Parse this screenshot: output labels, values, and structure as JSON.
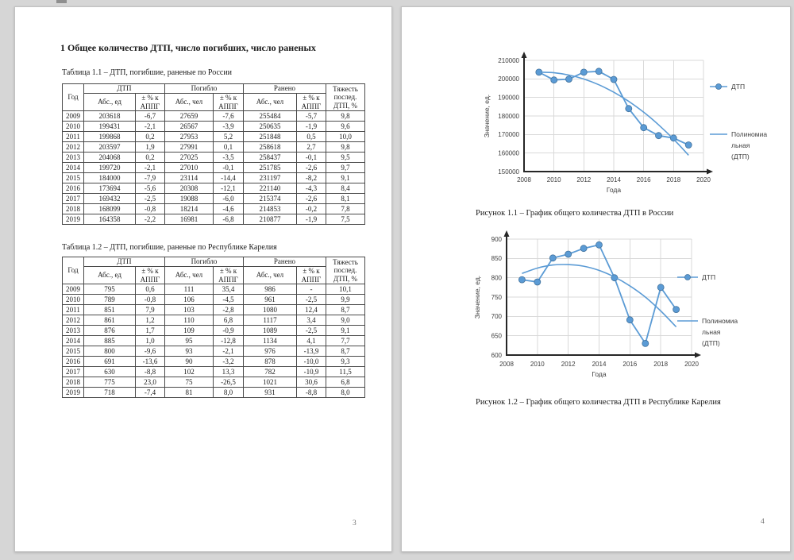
{
  "document": {
    "left_page": {
      "page_number": "3",
      "heading": "1 Общее количество ДТП, число погибших, число раненых",
      "table_header": {
        "year": "Год",
        "dtp": "ДТП",
        "killed": "Погибло",
        "injured": "Ранено",
        "abs_units": "Абс., ед",
        "abs_people": "Абс., чел",
        "pct_appg": "± % к АППГ",
        "severity": "Тяжесть послед. ДТП, %"
      },
      "tables": [
        {
          "caption": "Таблица 1.1 – ДТП, погибшие, раненые по России",
          "rows": [
            [
              "2009",
              "203618",
              "-6,7",
              "27659",
              "-7,6",
              "255484",
              "-5,7",
              "9,8"
            ],
            [
              "2010",
              "199431",
              "-2,1",
              "26567",
              "-3,9",
              "250635",
              "-1,9",
              "9,6"
            ],
            [
              "2011",
              "199868",
              "0,2",
              "27953",
              "5,2",
              "251848",
              "0,5",
              "10,0"
            ],
            [
              "2012",
              "203597",
              "1,9",
              "27991",
              "0,1",
              "258618",
              "2,7",
              "9,8"
            ],
            [
              "2013",
              "204068",
              "0,2",
              "27025",
              "-3,5",
              "258437",
              "-0,1",
              "9,5"
            ],
            [
              "2014",
              "199720",
              "-2,1",
              "27010",
              "-0,1",
              "251785",
              "-2,6",
              "9,7"
            ],
            [
              "2015",
              "184000",
              "-7,9",
              "23114",
              "-14,4",
              "231197",
              "-8,2",
              "9,1"
            ],
            [
              "2016",
              "173694",
              "-5,6",
              "20308",
              "-12,1",
              "221140",
              "-4,3",
              "8,4"
            ],
            [
              "2017",
              "169432",
              "-2,5",
              "19088",
              "-6,0",
              "215374",
              "-2,6",
              "8,1"
            ],
            [
              "2018",
              "168099",
              "-0,8",
              "18214",
              "-4,6",
              "214853",
              "-0,2",
              "7,8"
            ],
            [
              "2019",
              "164358",
              "-2,2",
              "16981",
              "-6,8",
              "210877",
              "-1,9",
              "7,5"
            ]
          ]
        },
        {
          "caption": "Таблица 1.2 – ДТП, погибшие, раненые по Республике Карелия",
          "rows": [
            [
              "2009",
              "795",
              "0,6",
              "111",
              "35,4",
              "986",
              "-",
              "10,1"
            ],
            [
              "2010",
              "789",
              "-0,8",
              "106",
              "-4,5",
              "961",
              "-2,5",
              "9,9"
            ],
            [
              "2011",
              "851",
              "7,9",
              "103",
              "-2,8",
              "1080",
              "12,4",
              "8,7"
            ],
            [
              "2012",
              "861",
              "1,2",
              "110",
              "6,8",
              "1117",
              "3,4",
              "9,0"
            ],
            [
              "2013",
              "876",
              "1,7",
              "109",
              "-0,9",
              "1089",
              "-2,5",
              "9,1"
            ],
            [
              "2014",
              "885",
              "1,0",
              "95",
              "-12,8",
              "1134",
              "4,1",
              "7,7"
            ],
            [
              "2015",
              "800",
              "-9,6",
              "93",
              "-2,1",
              "976",
              "-13,9",
              "8,7"
            ],
            [
              "2016",
              "691",
              "-13,6",
              "90",
              "-3,2",
              "878",
              "-10,0",
              "9,3"
            ],
            [
              "2017",
              "630",
              "-8,8",
              "102",
              "13,3",
              "782",
              "-10,9",
              "11,5"
            ],
            [
              "2018",
              "775",
              "23,0",
              "75",
              "-26,5",
              "1021",
              "30,6",
              "6,8"
            ],
            [
              "2019",
              "718",
              "-7,4",
              "81",
              "8,0",
              "931",
              "-8,8",
              "8,0"
            ]
          ]
        }
      ]
    },
    "right_page": {
      "page_number": "4",
      "figure_captions": [
        "Рисунок 1.1 – График общего количества ДТП в России",
        "Рисунок 1.2 – График общего количества ДТП в Республике Карелия"
      ]
    }
  },
  "chart_data": [
    {
      "type": "line",
      "title": "",
      "region": "Россия",
      "x": [
        2009,
        2010,
        2011,
        2012,
        2013,
        2014,
        2015,
        2016,
        2017,
        2018,
        2019
      ],
      "series": [
        {
          "name": "ДТП",
          "legend_lines": [
            "ДТП"
          ],
          "marker": true,
          "smooth": false,
          "values": [
            203618,
            199431,
            199868,
            203597,
            204068,
            199720,
            184000,
            173694,
            169432,
            168099,
            164358
          ]
        },
        {
          "name": "Полиномиальная (ДТП)",
          "legend_lines": [
            "Полиномиа",
            "льная",
            "(ДТП)"
          ],
          "marker": false,
          "smooth": true,
          "values": [
            203613,
            203308,
            202075,
            199914,
            196826,
            192810,
            187866,
            181994,
            175195,
            167468,
            158813
          ]
        }
      ],
      "xlabel": "Года",
      "ylabel": "Значение, ед.",
      "xlim": [
        2008,
        2020
      ],
      "ylim": [
        150000,
        210000
      ],
      "xticks": [
        2008,
        2010,
        2012,
        2014,
        2016,
        2018,
        2020
      ],
      "yticks": [
        150000,
        160000,
        170000,
        180000,
        190000,
        200000,
        210000
      ],
      "grid": true,
      "legend_position": "right",
      "line_color": "#5B9BD5",
      "marker_edge_color": "#41719C",
      "grid_color": "#D9D9D9",
      "axis_color": "#262626"
    },
    {
      "type": "line",
      "title": "",
      "region": "Республика Карелия",
      "x": [
        2009,
        2010,
        2011,
        2012,
        2013,
        2014,
        2015,
        2016,
        2017,
        2018,
        2019
      ],
      "series": [
        {
          "name": "ДТП",
          "legend_lines": [
            "ДТП"
          ],
          "marker": true,
          "smooth": false,
          "values": [
            795,
            789,
            851,
            861,
            876,
            885,
            800,
            691,
            630,
            775,
            718
          ]
        },
        {
          "name": "Полиномиальная (ДТП)",
          "legend_lines": [
            "Полиномиа",
            "льная",
            "(ДТП)"
          ],
          "marker": false,
          "smooth": true,
          "values": [
            811,
            825,
            833,
            834,
            830,
            819,
            802,
            779,
            750,
            714,
            673
          ]
        }
      ],
      "xlabel": "Года",
      "ylabel": "Значение, ед.",
      "xlim": [
        2008,
        2020
      ],
      "ylim": [
        600,
        900
      ],
      "xticks": [
        2008,
        2010,
        2012,
        2014,
        2016,
        2018,
        2020
      ],
      "yticks": [
        600,
        650,
        700,
        750,
        800,
        850,
        900
      ],
      "grid": true,
      "legend_position": "right",
      "line_color": "#5B9BD5",
      "marker_edge_color": "#41719C",
      "grid_color": "#D9D9D9",
      "axis_color": "#262626"
    }
  ]
}
